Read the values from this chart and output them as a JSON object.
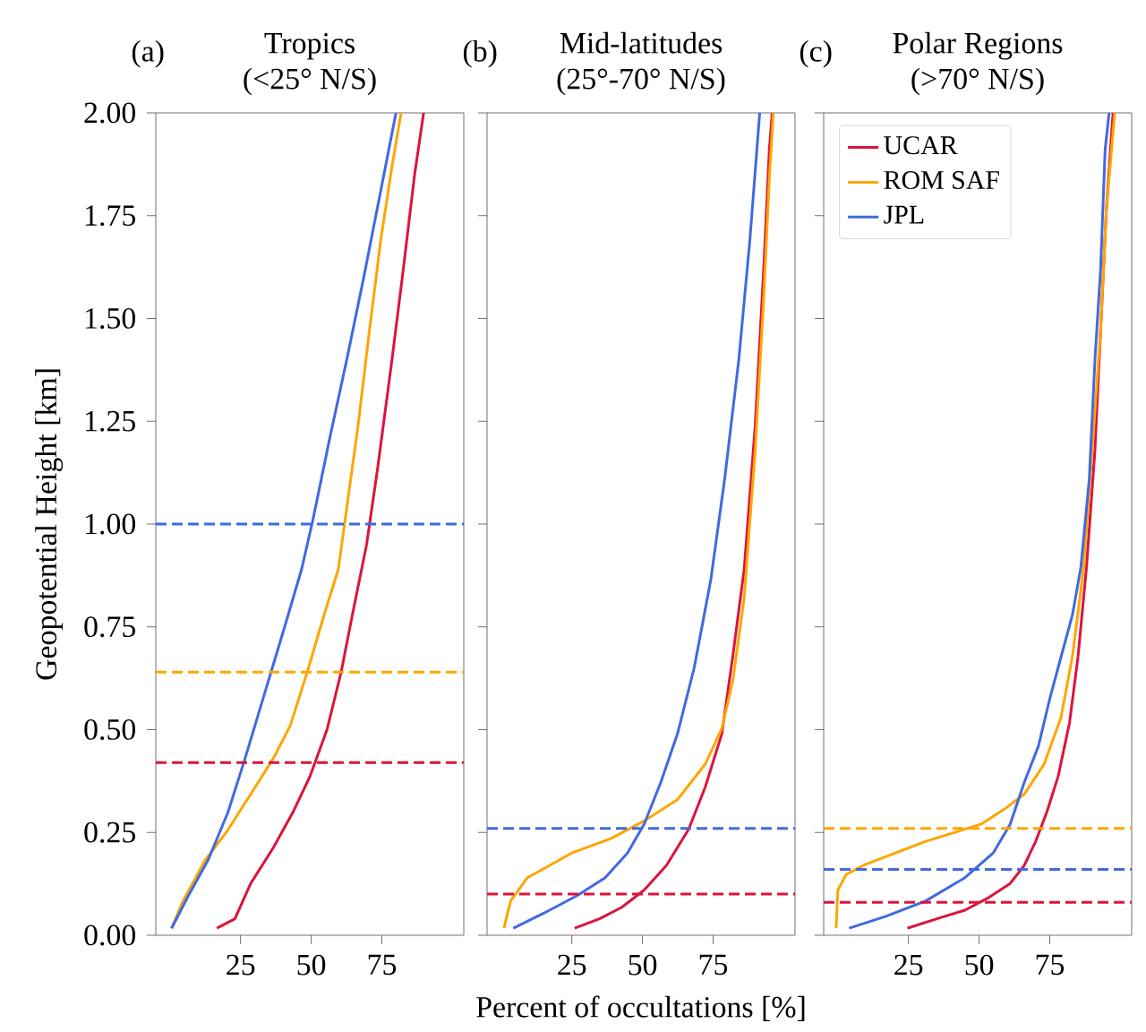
{
  "chart_data": [
    {
      "type": "line",
      "title": "Tropics",
      "subtitle": "(<25° N/S)",
      "annotations": [
        "(a)"
      ],
      "ylabel": "Geopotential Height [km]",
      "xlim": [
        -5,
        104
      ],
      "ylim": [
        0,
        2
      ],
      "xticks": [
        25,
        50,
        75
      ],
      "yticks": [
        {
          "value": 0,
          "label": "0.00"
        },
        {
          "value": 0.25,
          "label": "0.25"
        },
        {
          "value": 0.5,
          "label": "0.50"
        },
        {
          "value": 0.75,
          "label": "0.75"
        },
        {
          "value": 1,
          "label": "1.00"
        },
        {
          "value": 1.25,
          "label": "1.25"
        },
        {
          "value": 1.5,
          "label": "1.50"
        },
        {
          "value": 1.75,
          "label": "1.75"
        },
        {
          "value": 2,
          "label": "2.00"
        }
      ],
      "marker": "none",
      "line_style": "solid",
      "legend": false,
      "series": [
        {
          "color": "#dc143c",
          "x": [
            16.6,
            23,
            28.6,
            36.6,
            43.6,
            49.6,
            55.6,
            60.6,
            64.6,
            69.6,
            73.6,
            78.6,
            82.6,
            86.6,
            89.8
          ],
          "values": [
            0.017,
            0.04,
            0.126,
            0.213,
            0.3,
            0.387,
            0.5,
            0.64,
            0.78,
            0.95,
            1.14,
            1.4,
            1.62,
            1.85,
            2.0
          ]
        },
        {
          "color": "#ffa500",
          "x": [
            0.6,
            4.6,
            12.6,
            20.6,
            28.6,
            36.6,
            42.6,
            48.6,
            54.6,
            59.6,
            62.6,
            66.6,
            70.6,
            74.6,
            78.6,
            81.8
          ],
          "values": [
            0.017,
            0.083,
            0.184,
            0.257,
            0.343,
            0.43,
            0.51,
            0.64,
            0.78,
            0.89,
            1.04,
            1.24,
            1.47,
            1.69,
            1.87,
            2.0
          ]
        },
        {
          "color": "#4169e1",
          "x": [
            0.6,
            6.6,
            13.6,
            20.6,
            26.6,
            33.6,
            40.6,
            46.6,
            50.6,
            56.6,
            62.6,
            68.6,
            74.6,
            80
          ],
          "values": [
            0.017,
            0.097,
            0.184,
            0.3,
            0.43,
            0.59,
            0.75,
            0.89,
            1.01,
            1.21,
            1.4,
            1.6,
            1.81,
            2.0
          ]
        }
      ],
      "ref_lines": [
        {
          "axis": "y",
          "value": 1.0,
          "color": "#4169e1",
          "line_style": "dashed"
        },
        {
          "axis": "y",
          "value": 0.64,
          "color": "#ffa500",
          "line_style": "dashed"
        },
        {
          "axis": "y",
          "value": 0.42,
          "color": "#dc143c",
          "line_style": "dashed"
        }
      ]
    },
    {
      "type": "line",
      "title": "Mid-latitudes",
      "subtitle": "(25°-70° N/S)",
      "annotations": [
        "(b)"
      ],
      "xlabel": "Percent of occultations [%]",
      "xlim": [
        -5,
        104
      ],
      "ylim": [
        0,
        2
      ],
      "xticks": [
        25,
        50,
        75
      ],
      "yticks": [
        {
          "value": 0,
          "label": null
        },
        {
          "value": 0.25,
          "label": null
        },
        {
          "value": 0.5,
          "label": null
        },
        {
          "value": 0.75,
          "label": null
        },
        {
          "value": 1,
          "label": null
        },
        {
          "value": 1.25,
          "label": null
        },
        {
          "value": 1.5,
          "label": null
        },
        {
          "value": 1.75,
          "label": null
        },
        {
          "value": 2,
          "label": null
        }
      ],
      "tick_labels": "x",
      "marker": "none",
      "line_style": "solid",
      "legend": false,
      "series": [
        {
          "color": "#dc143c",
          "x": [
            26,
            34.8,
            42.7,
            50.6,
            58.5,
            66.3,
            72.2,
            78.1,
            82,
            86,
            89.9,
            92.9,
            94.9,
            95.9
          ],
          "values": [
            0.017,
            0.04,
            0.068,
            0.11,
            0.17,
            0.257,
            0.36,
            0.49,
            0.68,
            0.89,
            1.24,
            1.62,
            1.91,
            2.0
          ]
        },
        {
          "color": "#ffa500",
          "x": [
            1,
            3.3,
            9.3,
            25,
            38.8,
            50.6,
            62.4,
            72.2,
            78.1,
            82,
            86,
            89.9,
            92.9,
            94.9,
            96.3
          ],
          "values": [
            0.017,
            0.083,
            0.14,
            0.2,
            0.235,
            0.278,
            0.33,
            0.416,
            0.503,
            0.62,
            0.82,
            1.18,
            1.55,
            1.84,
            2.0
          ]
        },
        {
          "color": "#4169e1",
          "x": [
            4.3,
            15.2,
            27,
            36.8,
            44.7,
            50.6,
            56.5,
            62.4,
            68.3,
            74.2,
            79.1,
            84.1,
            88,
            91.5
          ],
          "values": [
            0.017,
            0.054,
            0.097,
            0.14,
            0.2,
            0.27,
            0.372,
            0.49,
            0.65,
            0.865,
            1.11,
            1.4,
            1.69,
            2.0
          ]
        }
      ],
      "ref_lines": [
        {
          "axis": "y",
          "value": 0.26,
          "color": "#4169e1",
          "line_style": "dashed"
        },
        {
          "axis": "y",
          "value": 0.1,
          "color": "#dc143c",
          "line_style": "dashed"
        }
      ]
    },
    {
      "type": "line",
      "title": "Polar Regions",
      "subtitle": "(>70° N/S)",
      "annotations": [
        "(c)"
      ],
      "xlim": [
        -5,
        104
      ],
      "ylim": [
        0,
        2
      ],
      "xticks": [
        25,
        50,
        75
      ],
      "yticks": [
        {
          "value": 0,
          "label": null
        },
        {
          "value": 0.25,
          "label": null
        },
        {
          "value": 0.5,
          "label": null
        },
        {
          "value": 0.75,
          "label": null
        },
        {
          "value": 1,
          "label": null
        },
        {
          "value": 1.25,
          "label": null
        },
        {
          "value": 1.5,
          "label": null
        },
        {
          "value": 1.75,
          "label": null
        },
        {
          "value": 2,
          "label": null
        }
      ],
      "tick_labels": "x",
      "marker": "none",
      "line_style": "solid",
      "legend": "top left",
      "series": [
        {
          "name": "UCAR",
          "color": "#dc143c",
          "x": [
            24.6,
            35,
            45,
            53,
            61,
            66,
            70,
            74,
            78,
            82,
            85,
            88,
            91,
            93,
            95,
            97.4
          ],
          "values": [
            0.017,
            0.04,
            0.061,
            0.09,
            0.126,
            0.17,
            0.228,
            0.3,
            0.387,
            0.517,
            0.677,
            0.894,
            1.18,
            1.47,
            1.76,
            2.0
          ]
        },
        {
          "name": "ROM SAF",
          "color": "#ffa500",
          "x": [
            -0.6,
            0,
            3,
            9,
            31,
            51,
            59,
            66,
            73,
            79,
            83,
            87,
            90,
            93,
            95,
            98
          ],
          "values": [
            0.017,
            0.11,
            0.148,
            0.17,
            0.228,
            0.271,
            0.307,
            0.343,
            0.416,
            0.53,
            0.677,
            0.894,
            1.18,
            1.47,
            1.76,
            2.0
          ]
        },
        {
          "name": "JPL",
          "color": "#4169e1",
          "x": [
            4,
            17,
            31,
            45,
            55,
            61,
            66,
            71,
            75,
            79,
            83,
            86,
            89,
            91,
            93,
            94.6,
            96
          ],
          "values": [
            0.017,
            0.046,
            0.083,
            0.14,
            0.2,
            0.27,
            0.372,
            0.46,
            0.575,
            0.677,
            0.778,
            0.894,
            1.11,
            1.4,
            1.62,
            1.91,
            2.0
          ]
        }
      ],
      "ref_lines": [
        {
          "axis": "y",
          "value": 0.26,
          "color": "#ffa500",
          "line_style": "dashed"
        },
        {
          "axis": "y",
          "value": 0.16,
          "color": "#4169e1",
          "line_style": "dashed"
        },
        {
          "axis": "y",
          "value": 0.08,
          "color": "#dc143c",
          "line_style": "dashed"
        }
      ]
    }
  ]
}
